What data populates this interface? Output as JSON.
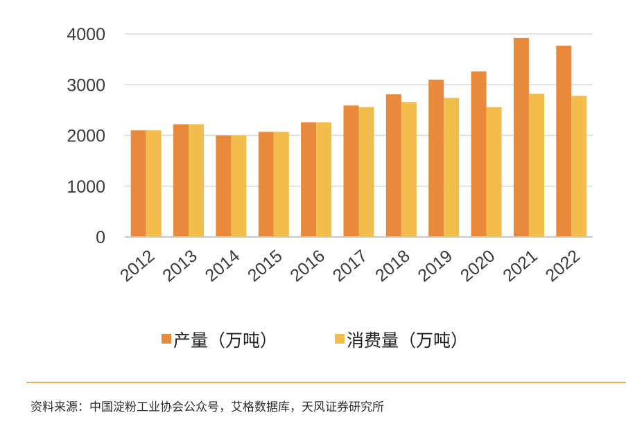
{
  "chart_data": {
    "type": "bar",
    "title": "",
    "xlabel": "",
    "ylabel": "",
    "categories": [
      "2012",
      "2013",
      "2014",
      "2015",
      "2016",
      "2017",
      "2018",
      "2019",
      "2020",
      "2021",
      "2022"
    ],
    "series": [
      {
        "name": "产量（万吨）",
        "color": "#e8893c",
        "values": [
          2100,
          2220,
          2000,
          2070,
          2260,
          2590,
          2810,
          3100,
          3260,
          3920,
          3770
        ]
      },
      {
        "name": "消费量（万吨）",
        "color": "#f2bd4b",
        "values": [
          2100,
          2220,
          2000,
          2070,
          2260,
          2560,
          2660,
          2740,
          2560,
          2820,
          2780
        ]
      }
    ],
    "ylim": [
      0,
      4000
    ],
    "yticks": [
      0,
      1000,
      2000,
      3000,
      4000
    ],
    "grid": true,
    "legend_position": "bottom"
  },
  "footer": {
    "source": "资料来源：中国淀粉工业协会公众号，艾格数据库，天风证券研究所",
    "divider_color": "#f0a868"
  }
}
